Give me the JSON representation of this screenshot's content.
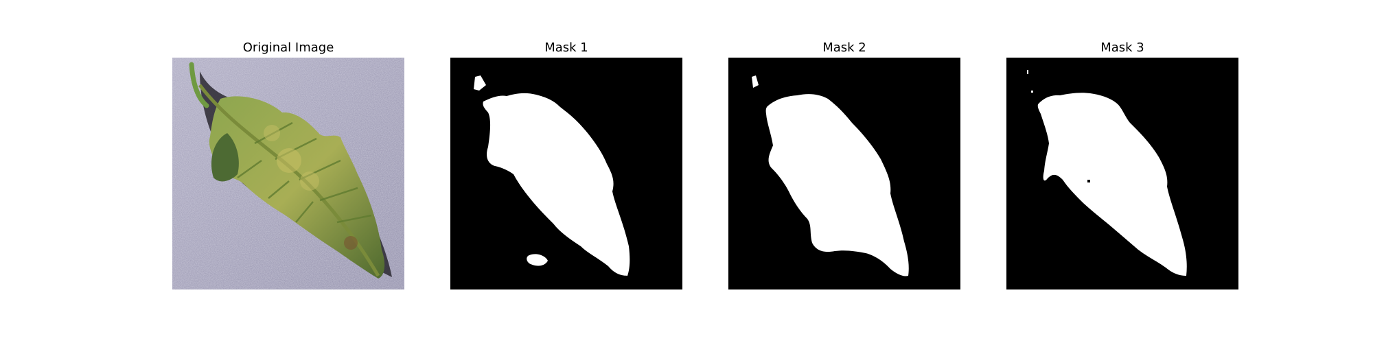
{
  "figure": {
    "panels": [
      {
        "title": "Original Image",
        "icon": "leaf-photo"
      },
      {
        "title": "Mask 1",
        "icon": "segmentation-mask"
      },
      {
        "title": "Mask 2",
        "icon": "segmentation-mask"
      },
      {
        "title": "Mask 3",
        "icon": "segmentation-mask"
      }
    ]
  },
  "colors": {
    "background": "#ffffff",
    "mask_background": "#000000",
    "mask_foreground": "#ffffff",
    "photo_background": "#9d9ab4",
    "leaf_green": "#6f8a3e",
    "leaf_yellow": "#b8b85a"
  }
}
